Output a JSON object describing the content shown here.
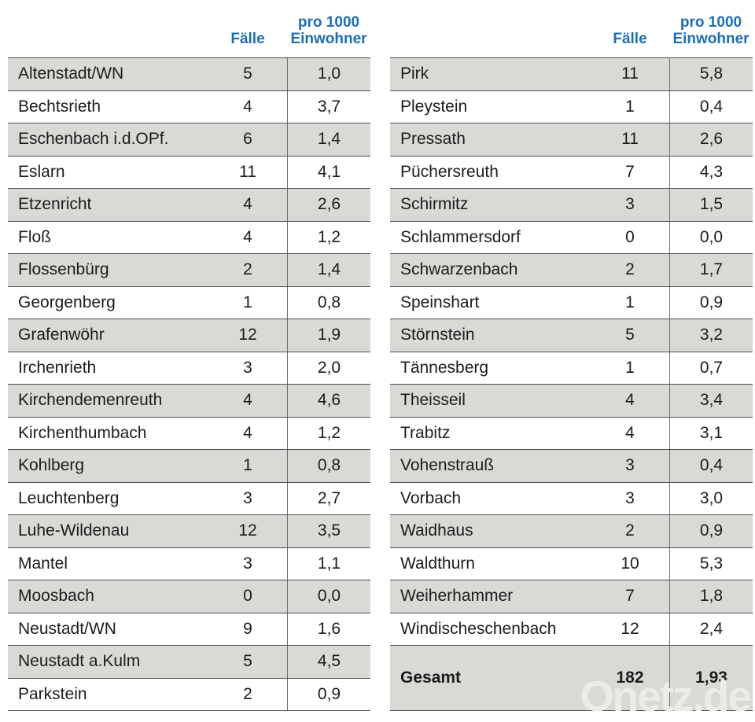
{
  "colors": {
    "header_blue": "#1d6db6",
    "row_stripe_gray": "#d9d9d6",
    "row_border": "#4f4f51",
    "column_divider": "#707173",
    "text": "#1c1c1c",
    "watermark": "#ebebe8"
  },
  "header": {
    "cases_label": "Fälle",
    "per1000_line1": "pro 1000",
    "per1000_line2": "Einwohner"
  },
  "watermark": {
    "text": "Onetz.de"
  },
  "chart_data": {
    "type": "table",
    "columns": [
      "",
      "Fälle",
      "pro 1000 Einwohner"
    ],
    "tables": [
      {
        "rows": [
          {
            "name": "Altenstadt/WN",
            "cases": "5",
            "rate": "1,0"
          },
          {
            "name": "Bechtsrieth",
            "cases": "4",
            "rate": "3,7"
          },
          {
            "name": "Eschenbach i.d.OPf.",
            "cases": "6",
            "rate": "1,4"
          },
          {
            "name": "Eslarn",
            "cases": "11",
            "rate": "4,1"
          },
          {
            "name": "Etzenricht",
            "cases": "4",
            "rate": "2,6"
          },
          {
            "name": "Floß",
            "cases": "4",
            "rate": "1,2"
          },
          {
            "name": "Flossenbürg",
            "cases": "2",
            "rate": "1,4"
          },
          {
            "name": "Georgenberg",
            "cases": "1",
            "rate": "0,8"
          },
          {
            "name": "Grafenwöhr",
            "cases": "12",
            "rate": "1,9"
          },
          {
            "name": "Irchenrieth",
            "cases": "3",
            "rate": "2,0"
          },
          {
            "name": "Kirchendemenreuth",
            "cases": "4",
            "rate": "4,6"
          },
          {
            "name": "Kirchenthumbach",
            "cases": "4",
            "rate": "1,2"
          },
          {
            "name": "Kohlberg",
            "cases": "1",
            "rate": "0,8"
          },
          {
            "name": "Leuchtenberg",
            "cases": "3",
            "rate": "2,7"
          },
          {
            "name": "Luhe-Wildenau",
            "cases": "12",
            "rate": "3,5"
          },
          {
            "name": "Mantel",
            "cases": "3",
            "rate": "1,1"
          },
          {
            "name": "Moosbach",
            "cases": "0",
            "rate": "0,0"
          },
          {
            "name": "Neustadt/WN",
            "cases": "9",
            "rate": "1,6"
          },
          {
            "name": "Neustadt a.Kulm",
            "cases": "5",
            "rate": "4,5"
          },
          {
            "name": "Parkstein",
            "cases": "2",
            "rate": "0,9"
          }
        ]
      },
      {
        "rows": [
          {
            "name": "Pirk",
            "cases": "11",
            "rate": "5,8"
          },
          {
            "name": "Pleystein",
            "cases": "1",
            "rate": "0,4"
          },
          {
            "name": "Pressath",
            "cases": "11",
            "rate": "2,6"
          },
          {
            "name": "Püchersreuth",
            "cases": "7",
            "rate": "4,3"
          },
          {
            "name": "Schirmitz",
            "cases": "3",
            "rate": "1,5"
          },
          {
            "name": "Schlammersdorf",
            "cases": "0",
            "rate": "0,0"
          },
          {
            "name": "Schwarzenbach",
            "cases": "2",
            "rate": "1,7"
          },
          {
            "name": "Speinshart",
            "cases": "1",
            "rate": "0,9"
          },
          {
            "name": "Störnstein",
            "cases": "5",
            "rate": "3,2"
          },
          {
            "name": "Tännesberg",
            "cases": "1",
            "rate": "0,7"
          },
          {
            "name": "Theisseil",
            "cases": "4",
            "rate": "3,4"
          },
          {
            "name": "Trabitz",
            "cases": "4",
            "rate": "3,1"
          },
          {
            "name": "Vohenstrauß",
            "cases": "3",
            "rate": "0,4"
          },
          {
            "name": "Vorbach",
            "cases": "3",
            "rate": "3,0"
          },
          {
            "name": "Waidhaus",
            "cases": "2",
            "rate": "0,9"
          },
          {
            "name": "Waldthurn",
            "cases": "10",
            "rate": "5,3"
          },
          {
            "name": "Weiherhammer",
            "cases": "7",
            "rate": "1,8"
          },
          {
            "name": "Windischeschenbach",
            "cases": "12",
            "rate": "2,4"
          }
        ]
      }
    ],
    "total": {
      "name": "Gesamt",
      "cases": "182",
      "rate": "1,93"
    }
  }
}
